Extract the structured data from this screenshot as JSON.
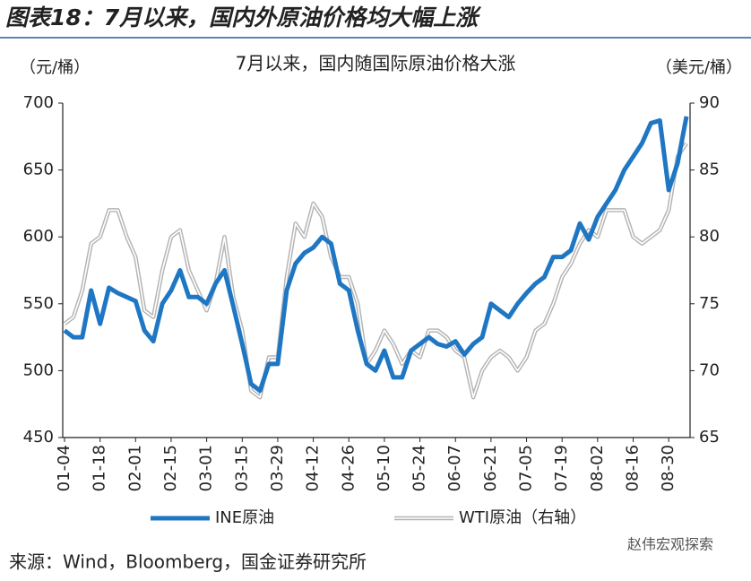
{
  "header": {
    "title": "图表18：7月以来，国内外原油价格均大幅上涨"
  },
  "chart_data": {
    "type": "line",
    "title": "7月以来，国内随国际原油价格大涨",
    "y_label": "（元/桶）",
    "y2_label": "（美元/桶）",
    "categories": [
      "01-04",
      null,
      null,
      null,
      "01-18",
      null,
      null,
      null,
      "02-01",
      null,
      null,
      null,
      "02-15",
      null,
      null,
      null,
      "03-01",
      null,
      null,
      null,
      "03-15",
      null,
      null,
      null,
      "03-29",
      null,
      null,
      null,
      "04-12",
      null,
      null,
      null,
      "04-26",
      null,
      null,
      null,
      "05-10",
      null,
      null,
      null,
      "05-24",
      null,
      null,
      null,
      "06-07",
      null,
      null,
      null,
      "06-21",
      null,
      null,
      null,
      "07-05",
      null,
      null,
      null,
      "07-19",
      null,
      null,
      null,
      "08-02",
      null,
      null,
      null,
      "08-16",
      null,
      null,
      null,
      "08-30",
      null,
      null
    ],
    "series": [
      {
        "name": "INE原油",
        "color": "#1f77c4",
        "values": [
          530,
          525,
          525,
          560,
          535,
          562,
          558,
          555,
          552,
          530,
          522,
          550,
          560,
          575,
          555,
          555,
          550,
          565,
          575,
          548,
          520,
          490,
          485,
          505,
          505,
          560,
          580,
          588,
          592,
          600,
          595,
          565,
          560,
          530,
          505,
          500,
          515,
          495,
          495,
          515,
          520,
          525,
          520,
          518,
          522,
          512,
          520,
          525,
          550,
          545,
          540,
          550,
          558,
          565,
          570,
          585,
          585,
          590,
          610,
          598,
          615,
          625,
          635,
          650,
          660,
          670,
          685,
          687,
          635,
          655,
          690
        ]
      },
      {
        "name": "WTI原油（右轴）",
        "color": "#b4b4b4",
        "axis": "y2",
        "values": [
          73.5,
          74,
          76,
          79.5,
          80,
          82,
          82,
          80,
          78.5,
          74.5,
          74,
          77.5,
          80,
          80.5,
          77.5,
          76,
          74.5,
          76.5,
          80,
          75.5,
          73,
          68.5,
          68,
          71,
          71,
          77,
          81,
          80,
          82.5,
          81.5,
          78.5,
          77,
          77,
          75,
          70.5,
          71.5,
          73,
          72,
          70.5,
          71.5,
          71,
          73,
          73,
          72.5,
          71.5,
          71,
          68,
          70,
          71,
          71.5,
          71,
          70,
          71,
          73,
          73.5,
          75,
          77,
          78,
          79.5,
          80.5,
          80,
          82,
          82,
          82,
          80,
          79.5,
          80,
          80.5,
          82,
          86,
          87
        ]
      }
    ],
    "ylim": [
      450,
      700
    ],
    "yticks": [
      450,
      500,
      550,
      600,
      650,
      700
    ],
    "y2lim": [
      65,
      90
    ],
    "y2ticks": [
      65,
      70,
      75,
      80,
      85,
      90
    ],
    "grid": false
  },
  "footer": {
    "source": "来源：Wind，Bloomberg，国金证券研究所",
    "watermark": "赵伟宏观探索"
  }
}
